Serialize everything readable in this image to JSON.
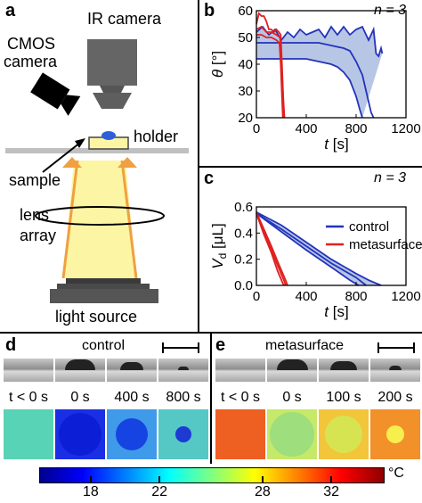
{
  "panel_a": {
    "label": "a",
    "ir_camera": "IR camera",
    "cmos_line1": "CMOS",
    "cmos_line2": "camera",
    "holder": "holder",
    "sample": "sample",
    "lens_line1": "lens",
    "lens_line2": "array",
    "light_source": "light source"
  },
  "panel_b": {
    "label": "b",
    "n_label": "n = 3"
  },
  "panel_c": {
    "label": "c",
    "n_label": "n = 3"
  },
  "panel_d": {
    "label": "d",
    "title": "control",
    "times": [
      "t < 0 s",
      "0 s",
      "400 s",
      "800 s"
    ],
    "ir_colors": [
      "#59d3b5",
      "#1a2fe4",
      "#3f9ae9",
      "#55c7c5"
    ],
    "drop_colors": [
      "",
      "#0d1fd6",
      "#1644e2",
      "#1d3ad2"
    ],
    "drop_sizes": [
      0,
      48,
      36,
      18
    ]
  },
  "panel_e": {
    "label": "e",
    "title": "metasurface",
    "times": [
      "t < 0 s",
      "0 s",
      "100 s",
      "200 s"
    ],
    "ir_colors": [
      "#ee5f22",
      "#c6e96a",
      "#f2c53a",
      "#f2902a"
    ],
    "drop_colors": [
      "",
      "#9ede7c",
      "#d6e452",
      "#f6ef4d"
    ],
    "drop_sizes": [
      0,
      50,
      42,
      20
    ]
  },
  "colorbar": {
    "unit": "°C",
    "min": 15,
    "max": 35,
    "ticks": [
      "18",
      "22",
      "28",
      "32"
    ],
    "tick_values": [
      18,
      22,
      28,
      32
    ],
    "colors": [
      "#00008f",
      "#0000ff",
      "#0080ff",
      "#00ffff",
      "#80ff80",
      "#ffff00",
      "#ff8000",
      "#ff0000",
      "#8f0000"
    ]
  },
  "chart_data": [
    {
      "type": "line",
      "panel": "b",
      "title": "",
      "xlabel": "t [s]",
      "ylabel": "θ [°]",
      "xlim": [
        0,
        1200
      ],
      "ylim": [
        20,
        60
      ],
      "xticks": [
        "0",
        "400",
        "800",
        "1200"
      ],
      "yticks": [
        "20",
        "30",
        "40",
        "50",
        "60"
      ],
      "series": [
        {
          "color": "#2233bb",
          "fill": "#b8c6e6",
          "upper": [
            [
              0,
              52
            ],
            [
              50,
              54
            ],
            [
              100,
              51
            ],
            [
              150,
              53
            ],
            [
              200,
              49
            ],
            [
              250,
              52
            ],
            [
              300,
              50
            ],
            [
              350,
              53
            ],
            [
              400,
              51
            ],
            [
              450,
              52
            ],
            [
              500,
              53
            ],
            [
              550,
              50
            ],
            [
              600,
              54
            ],
            [
              650,
              51
            ],
            [
              700,
              54
            ],
            [
              750,
              51
            ],
            [
              800,
              53
            ],
            [
              850,
              54
            ],
            [
              900,
              49
            ],
            [
              940,
              53
            ],
            [
              960,
              44
            ],
            [
              980,
              43
            ],
            [
              1000,
              46
            ],
            [
              1010,
              44
            ]
          ],
          "mean": [
            [
              0,
              48
            ],
            [
              100,
              48
            ],
            [
              200,
              48
            ],
            [
              300,
              48
            ],
            [
              400,
              48
            ],
            [
              500,
              48
            ],
            [
              600,
              47
            ],
            [
              700,
              46
            ],
            [
              750,
              45
            ],
            [
              800,
              41
            ],
            [
              850,
              36
            ],
            [
              880,
              30
            ],
            [
              900,
              26
            ],
            [
              920,
              22
            ],
            [
              940,
              20
            ]
          ],
          "lower": [
            [
              0,
              42
            ],
            [
              100,
              42
            ],
            [
              200,
              42
            ],
            [
              300,
              42
            ],
            [
              400,
              42
            ],
            [
              500,
              41
            ],
            [
              600,
              40
            ],
            [
              650,
              39
            ],
            [
              700,
              37
            ],
            [
              750,
              34
            ],
            [
              800,
              28
            ],
            [
              830,
              23
            ],
            [
              850,
              20
            ]
          ]
        },
        {
          "color": "#e02020",
          "upper": [
            [
              0,
              55
            ],
            [
              20,
              59
            ],
            [
              40,
              58
            ],
            [
              60,
              58
            ],
            [
              80,
              56
            ],
            [
              100,
              53
            ],
            [
              120,
              53
            ],
            [
              140,
              52
            ],
            [
              160,
              53
            ],
            [
              180,
              52
            ],
            [
              195,
              51
            ],
            [
              205,
              40
            ],
            [
              215,
              28
            ],
            [
              225,
              20
            ]
          ],
          "mean": [
            [
              0,
              53
            ],
            [
              40,
              54
            ],
            [
              80,
              52
            ],
            [
              120,
              52
            ],
            [
              160,
              51
            ],
            [
              190,
              50
            ],
            [
              200,
              42
            ],
            [
              212,
              30
            ],
            [
              220,
              20
            ]
          ],
          "lower": [
            [
              0,
              51
            ],
            [
              40,
              51
            ],
            [
              80,
              50
            ],
            [
              120,
              50
            ],
            [
              160,
              49
            ],
            [
              185,
              48
            ],
            [
              195,
              40
            ],
            [
              205,
              28
            ],
            [
              212,
              20
            ]
          ]
        }
      ]
    },
    {
      "type": "line",
      "panel": "c",
      "title": "",
      "xlabel": "t [s]",
      "ylabel": "Vd [μL]",
      "xlim": [
        0,
        1200
      ],
      "ylim": [
        0,
        0.6
      ],
      "xticks": [
        "0",
        "400",
        "800",
        "1200"
      ],
      "yticks": [
        "0.0",
        "0.2",
        "0.4",
        "0.6"
      ],
      "legend": [
        "control",
        "metasurface"
      ],
      "legend_position": "upper-right",
      "series": [
        {
          "name": "control",
          "color": "#2233bb",
          "fill": "#b8c6e6",
          "upper": [
            [
              0,
              0.56
            ],
            [
              200,
              0.46
            ],
            [
              400,
              0.33
            ],
            [
              600,
              0.2
            ],
            [
              800,
              0.09
            ],
            [
              900,
              0.04
            ],
            [
              1000,
              0.0
            ]
          ],
          "mean": [
            [
              0,
              0.55
            ],
            [
              200,
              0.43
            ],
            [
              400,
              0.3
            ],
            [
              600,
              0.17
            ],
            [
              800,
              0.06
            ],
            [
              880,
              0.0
            ]
          ],
          "lower": [
            [
              0,
              0.55
            ],
            [
              200,
              0.41
            ],
            [
              400,
              0.27
            ],
            [
              600,
              0.14
            ],
            [
              750,
              0.04
            ],
            [
              820,
              0.0
            ]
          ]
        },
        {
          "name": "metasurface",
          "color": "#e02020",
          "upper": [
            [
              0,
              0.56
            ],
            [
              60,
              0.43
            ],
            [
              120,
              0.3
            ],
            [
              180,
              0.16
            ],
            [
              230,
              0.05
            ],
            [
              250,
              0.0
            ]
          ],
          "mean": [
            [
              0,
              0.55
            ],
            [
              60,
              0.41
            ],
            [
              120,
              0.27
            ],
            [
              180,
              0.13
            ],
            [
              220,
              0.04
            ],
            [
              235,
              0.0
            ]
          ],
          "lower": [
            [
              0,
              0.55
            ],
            [
              60,
              0.39
            ],
            [
              120,
              0.25
            ],
            [
              170,
              0.11
            ],
            [
              210,
              0.02
            ],
            [
              220,
              0.0
            ]
          ]
        }
      ]
    }
  ]
}
